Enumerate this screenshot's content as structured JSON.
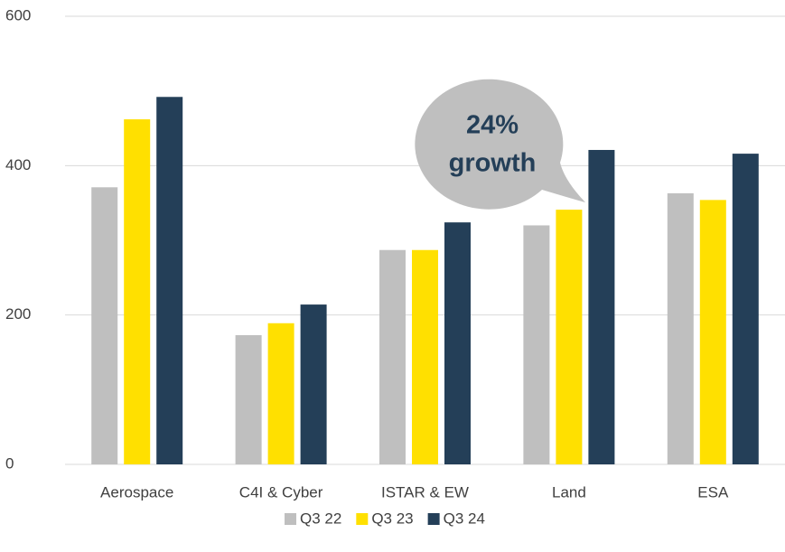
{
  "chart_data": {
    "type": "bar",
    "categories": [
      "Aerospace",
      "C4I & Cyber",
      "ISTAR & EW",
      "Land",
      "ESA"
    ],
    "series": [
      {
        "name": "Q3 22",
        "color": "#bfbfbf",
        "values": [
          371,
          173,
          287,
          320,
          363
        ]
      },
      {
        "name": "Q3 23",
        "color": "#ffe000",
        "values": [
          462,
          189,
          287,
          341,
          354
        ]
      },
      {
        "name": "Q3 24",
        "color": "#243f58",
        "values": [
          492,
          214,
          324,
          421,
          416
        ]
      }
    ],
    "ylim": [
      0,
      600
    ],
    "yticks": [
      0,
      200,
      400,
      600
    ],
    "grid": true,
    "legend": "bottom",
    "annotation": {
      "lines": [
        "24%",
        "growth"
      ],
      "color": "#bfbfbf",
      "text_color": "#243f58"
    }
  }
}
